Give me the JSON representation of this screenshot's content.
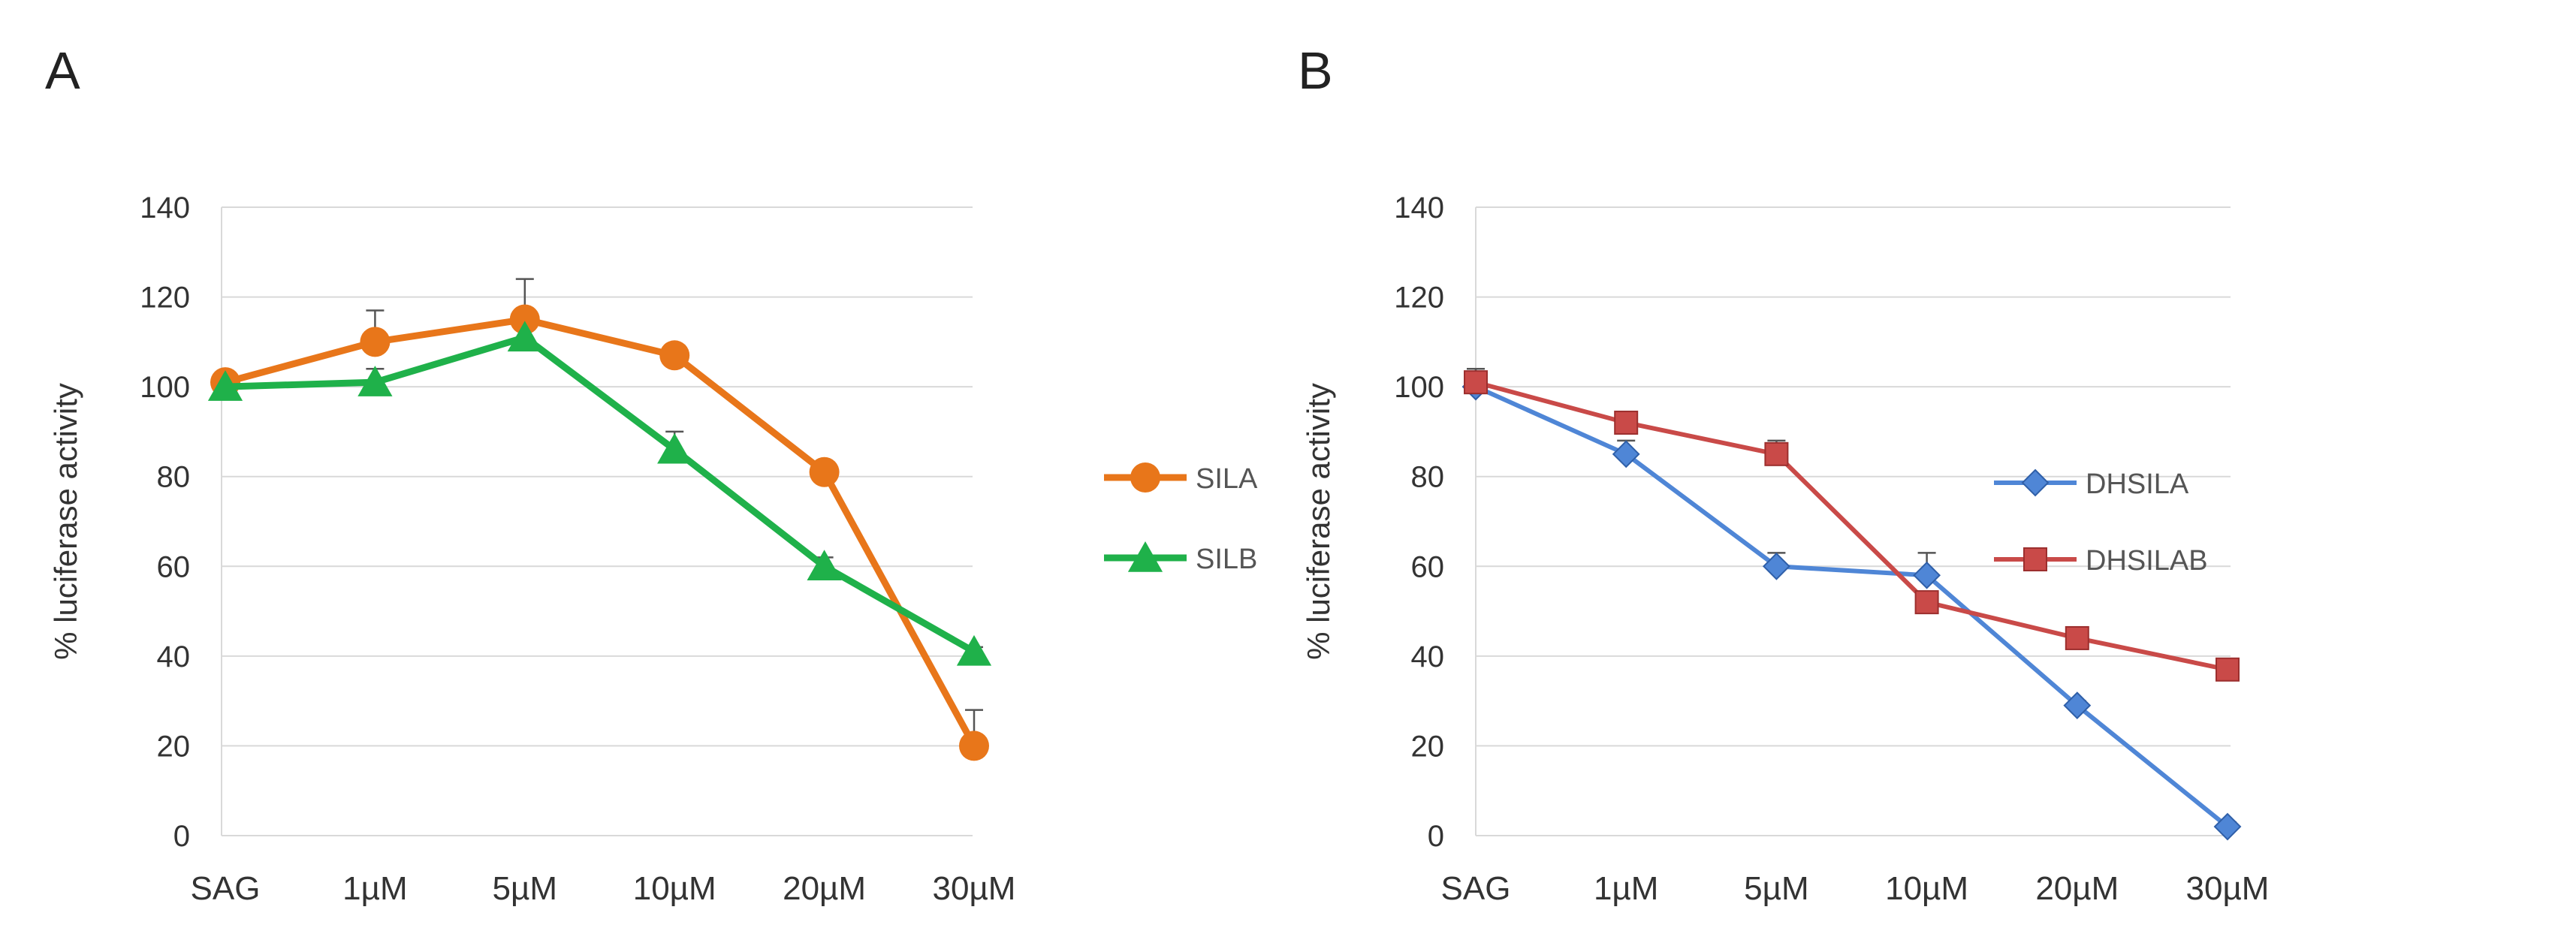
{
  "chart_data": [
    {
      "panel": "A",
      "type": "line",
      "title": "",
      "xlabel": "",
      "ylabel": "% luciferase activity",
      "categories": [
        "SAG",
        "1µM",
        "5µM",
        "10µM",
        "20µM",
        "30µM"
      ],
      "ylim": [
        0,
        140
      ],
      "yticks": [
        0,
        20,
        40,
        60,
        80,
        100,
        120,
        140
      ],
      "grid": true,
      "legend": "right",
      "series": [
        {
          "name": "SILA",
          "color": "#e8761a",
          "marker": "circle",
          "values": [
            101,
            110,
            115,
            107,
            81,
            20
          ],
          "errors": [
            2,
            7,
            9,
            2,
            1,
            8
          ]
        },
        {
          "name": "SILB",
          "color": "#1fb14a",
          "marker": "triangle",
          "values": [
            100,
            101,
            111,
            86,
            60,
            41
          ],
          "errors": [
            1,
            3,
            2,
            4,
            2,
            1
          ]
        }
      ]
    },
    {
      "panel": "B",
      "type": "line",
      "title": "",
      "xlabel": "",
      "ylabel": "% luciferase activity",
      "categories": [
        "SAG",
        "1µM",
        "5µM",
        "10µM",
        "20µM",
        "30µM"
      ],
      "ylim": [
        0,
        140
      ],
      "yticks": [
        0,
        20,
        40,
        60,
        80,
        100,
        120,
        140
      ],
      "grid": true,
      "legend": "right",
      "series": [
        {
          "name": "DHSILA",
          "color": "#4f86d6",
          "marker": "diamond",
          "values": [
            100,
            85,
            60,
            58,
            29,
            2
          ],
          "errors": [
            4,
            3,
            3,
            5,
            1,
            1
          ]
        },
        {
          "name": "DHSILAB",
          "color": "#c94a48",
          "marker": "square",
          "values": [
            101,
            92,
            85,
            52,
            44,
            37
          ],
          "errors": [
            3,
            2,
            3,
            2,
            1,
            1
          ]
        }
      ]
    }
  ]
}
